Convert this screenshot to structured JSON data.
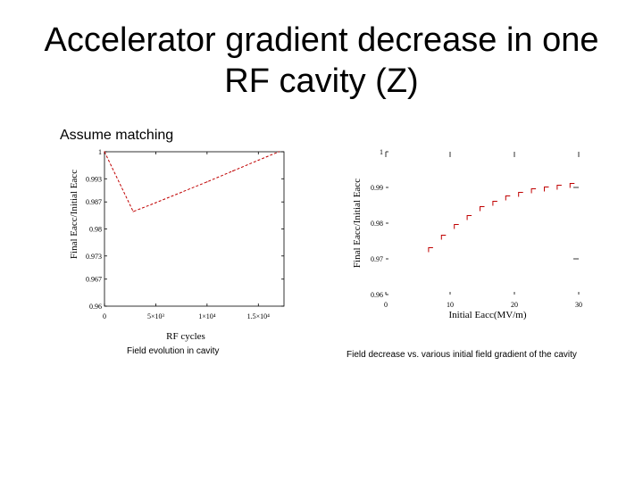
{
  "slide": {
    "title_line1": "Accelerator gradient decrease in one",
    "title_line2": "RF cavity (Z)",
    "note": "Assume matching"
  },
  "chart_data": [
    {
      "type": "line",
      "title": "",
      "xlabel": "RF cycles",
      "ylabel": "Final Eacc/Initial Eacc",
      "caption": "Field evolution in cavity",
      "xlim": [
        0,
        17500
      ],
      "ylim": [
        0.96,
        1.0
      ],
      "xticks": [
        {
          "value": 0,
          "label": "0"
        },
        {
          "value": 5000,
          "label": "5×10³"
        },
        {
          "value": 10000,
          "label": "1×10⁴"
        },
        {
          "value": 15000,
          "label": "1.5×10⁴"
        }
      ],
      "yticks": [
        {
          "value": 0.96,
          "label": "0.96"
        },
        {
          "value": 0.967,
          "label": "0.967"
        },
        {
          "value": 0.973,
          "label": "0.973"
        },
        {
          "value": 0.98,
          "label": "0.98"
        },
        {
          "value": 0.987,
          "label": "0.987"
        },
        {
          "value": 0.993,
          "label": "0.993"
        },
        {
          "value": 1.0,
          "label": "1"
        }
      ],
      "grid": false,
      "color": "#c00000",
      "series": [
        {
          "x": [
            0,
            2800,
            5000,
            7500,
            10000,
            12500,
            15000,
            17000
          ],
          "y": [
            1.0,
            0.9845,
            0.9868,
            0.9895,
            0.9922,
            0.995,
            0.9978,
            1.0
          ]
        }
      ]
    },
    {
      "type": "scatter",
      "title": "",
      "xlabel": "Initial Eacc(MV/m)",
      "ylabel": "Final Eacc/Initial Eacc",
      "caption": "Field decrease vs. various initial field gradient of the cavity",
      "xlim": [
        0,
        30
      ],
      "ylim": [
        0.96,
        1.0
      ],
      "xticks": [
        {
          "value": 0,
          "label": "0"
        },
        {
          "value": 10,
          "label": "10"
        },
        {
          "value": 20,
          "label": "20"
        },
        {
          "value": 30,
          "label": "30"
        }
      ],
      "yticks": [
        {
          "value": 0.96,
          "label": "0.96"
        },
        {
          "value": 0.97,
          "label": "0.97"
        },
        {
          "value": 0.98,
          "label": "0.98"
        },
        {
          "value": 0.99,
          "label": "0.99"
        },
        {
          "value": 1.0,
          "label": "1"
        }
      ],
      "grid": false,
      "color": "#c00000",
      "series": [
        {
          "x": [
            7,
            9,
            11,
            13,
            15,
            17,
            19,
            21,
            23,
            25,
            27,
            29
          ],
          "y": [
            0.9725,
            0.976,
            0.979,
            0.9815,
            0.984,
            0.9855,
            0.987,
            0.988,
            0.989,
            0.9895,
            0.99,
            0.9905
          ]
        }
      ]
    }
  ]
}
